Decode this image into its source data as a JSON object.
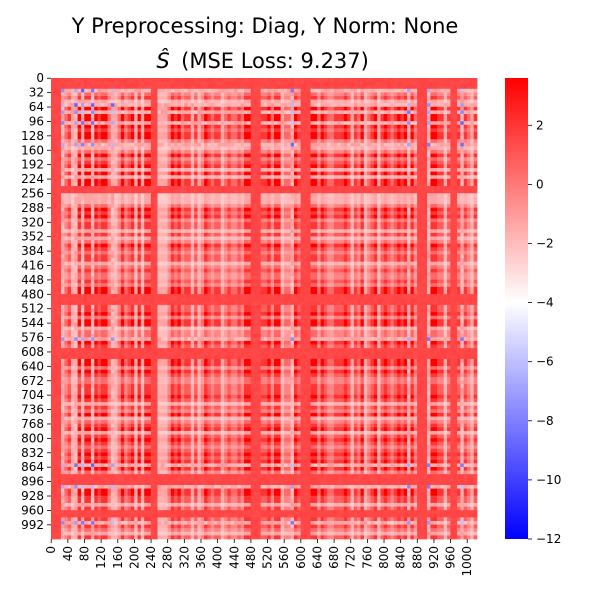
{
  "chart_data": {
    "type": "heatmap",
    "title_line1": "Y Preprocessing: Diag, Y Norm: None",
    "title_line2": "(MSE Loss: 9.237)",
    "title_symbol": "Ŝ",
    "x_ticks": [
      "0",
      "40",
      "80",
      "120",
      "160",
      "200",
      "240",
      "280",
      "320",
      "360",
      "400",
      "440",
      "480",
      "520",
      "560",
      "600",
      "640",
      "680",
      "720",
      "760",
      "800",
      "840",
      "880",
      "920",
      "960",
      "1000"
    ],
    "y_ticks": [
      "0",
      "32",
      "64",
      "96",
      "128",
      "160",
      "192",
      "224",
      "256",
      "288",
      "320",
      "352",
      "384",
      "416",
      "448",
      "480",
      "512",
      "544",
      "576",
      "608",
      "640",
      "672",
      "704",
      "736",
      "768",
      "800",
      "832",
      "864",
      "896",
      "928",
      "960",
      "992"
    ],
    "matrix_size": 1024,
    "x_tick_step": 40,
    "y_tick_step": 32,
    "colormap": "bwr",
    "colormap_stops": [
      "#0000ff",
      "#ffffff",
      "#ff0000"
    ],
    "vmin": -12,
    "vmax": 3.6,
    "colorbar_ticks": [
      "2",
      "0",
      "−2",
      "−4",
      "−6",
      "−8",
      "−10",
      "−12"
    ],
    "colorbar_tick_values": [
      2,
      0,
      -2,
      -4,
      -6,
      -8,
      -10,
      -12
    ],
    "pattern_note": "symmetric outer-product structure; most values between 0 and 3.6 (light to saturated red), a few scattered white/blue cells near -4 to -10"
  }
}
